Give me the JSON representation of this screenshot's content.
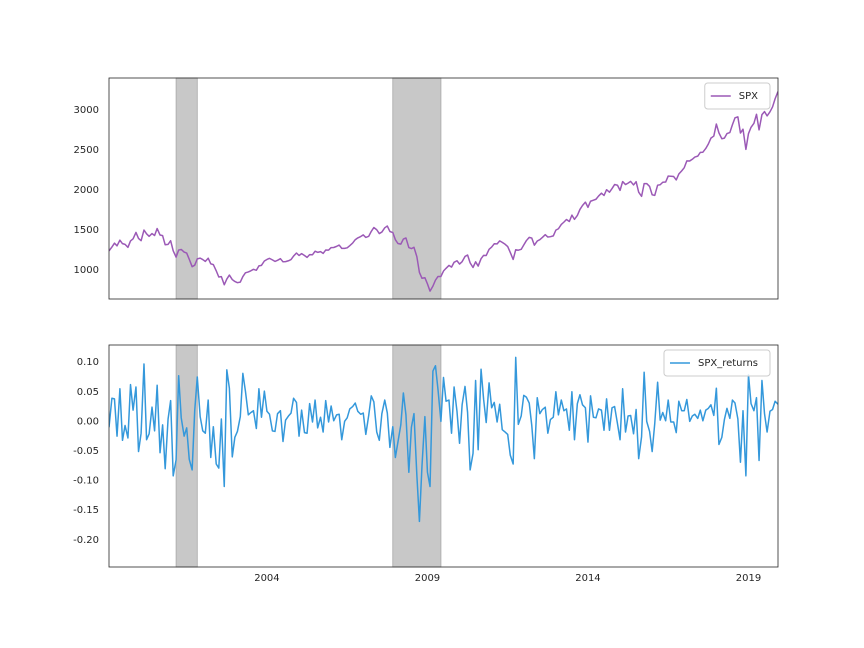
{
  "chart_data": [
    {
      "type": "line",
      "x": [
        1999.08,
        1999.17,
        1999.25,
        1999.33,
        1999.42,
        1999.5,
        1999.58,
        1999.67,
        1999.75,
        1999.83,
        1999.92,
        2000,
        2000.08,
        2000.17,
        2000.25,
        2000.33,
        2000.42,
        2000.5,
        2000.58,
        2000.67,
        2000.75,
        2000.83,
        2000.92,
        2001,
        2001.08,
        2001.17,
        2001.25,
        2001.33,
        2001.42,
        2001.5,
        2001.58,
        2001.67,
        2001.75,
        2001.83,
        2001.92,
        2002,
        2002.08,
        2002.17,
        2002.25,
        2002.33,
        2002.42,
        2002.5,
        2002.58,
        2002.67,
        2002.75,
        2002.83,
        2002.92,
        2003,
        2003.08,
        2003.17,
        2003.25,
        2003.33,
        2003.42,
        2003.5,
        2003.58,
        2003.67,
        2003.75,
        2003.83,
        2003.92,
        2004,
        2004.08,
        2004.17,
        2004.25,
        2004.33,
        2004.42,
        2004.5,
        2004.58,
        2004.67,
        2004.75,
        2004.83,
        2004.92,
        2005,
        2005.08,
        2005.17,
        2005.25,
        2005.33,
        2005.42,
        2005.5,
        2005.58,
        2005.67,
        2005.75,
        2005.83,
        2005.92,
        2006,
        2006.08,
        2006.17,
        2006.25,
        2006.33,
        2006.42,
        2006.5,
        2006.58,
        2006.67,
        2006.75,
        2006.83,
        2006.92,
        2007,
        2007.08,
        2007.17,
        2007.25,
        2007.33,
        2007.42,
        2007.5,
        2007.58,
        2007.67,
        2007.75,
        2007.83,
        2007.92,
        2008,
        2008.08,
        2008.17,
        2008.25,
        2008.33,
        2008.42,
        2008.5,
        2008.58,
        2008.67,
        2008.75,
        2008.83,
        2008.92,
        2009,
        2009.08,
        2009.17,
        2009.25,
        2009.33,
        2009.42,
        2009.5,
        2009.58,
        2009.67,
        2009.75,
        2009.83,
        2009.92,
        2010,
        2010.08,
        2010.17,
        2010.25,
        2010.33,
        2010.42,
        2010.5,
        2010.58,
        2010.67,
        2010.75,
        2010.83,
        2010.92,
        2011,
        2011.08,
        2011.17,
        2011.25,
        2011.33,
        2011.42,
        2011.5,
        2011.58,
        2011.67,
        2011.75,
        2011.83,
        2011.92,
        2012,
        2012.08,
        2012.17,
        2012.25,
        2012.33,
        2012.42,
        2012.5,
        2012.58,
        2012.67,
        2012.75,
        2012.83,
        2012.92,
        2013,
        2013.08,
        2013.17,
        2013.25,
        2013.33,
        2013.42,
        2013.5,
        2013.58,
        2013.67,
        2013.75,
        2013.83,
        2013.92,
        2014,
        2014.08,
        2014.17,
        2014.25,
        2014.33,
        2014.42,
        2014.5,
        2014.58,
        2014.67,
        2014.75,
        2014.83,
        2014.92,
        2015,
        2015.08,
        2015.17,
        2015.25,
        2015.33,
        2015.42,
        2015.5,
        2015.58,
        2015.67,
        2015.75,
        2015.83,
        2015.92,
        2016,
        2016.08,
        2016.17,
        2016.25,
        2016.33,
        2016.42,
        2016.5,
        2016.58,
        2016.67,
        2016.75,
        2016.83,
        2016.92,
        2017,
        2017.08,
        2017.17,
        2017.25,
        2017.33,
        2017.42,
        2017.5,
        2017.58,
        2017.67,
        2017.75,
        2017.83,
        2017.92,
        2018,
        2018.08,
        2018.17,
        2018.25,
        2018.33,
        2018.42,
        2018.5,
        2018.58,
        2018.67,
        2018.75,
        2018.83,
        2018.92,
        2019,
        2019.08,
        2019.17,
        2019.25,
        2019.33,
        2019.42,
        2019.5,
        2019.58,
        2019.67,
        2019.75,
        2019.83,
        2019.92
      ],
      "xlim": [
        1999.08,
        2019.92
      ],
      "series": [
        {
          "name": "SPX",
          "color": "#9b59b6",
          "values": [
            1238,
            1286,
            1335,
            1302,
            1373,
            1329,
            1320,
            1283,
            1363,
            1389,
            1469,
            1394,
            1366,
            1499,
            1452,
            1421,
            1455,
            1431,
            1518,
            1437,
            1429,
            1315,
            1320,
            1366,
            1240,
            1160,
            1249,
            1256,
            1224,
            1211,
            1134,
            1041,
            1060,
            1139,
            1148,
            1130,
            1107,
            1147,
            1077,
            1067,
            990,
            912,
            916,
            815,
            886,
            936,
            880,
            856,
            841,
            848,
            917,
            964,
            975,
            990,
            1008,
            996,
            1051,
            1058,
            1112,
            1131,
            1145,
            1126,
            1107,
            1121,
            1141,
            1102,
            1104,
            1115,
            1130,
            1174,
            1212,
            1181,
            1204,
            1181,
            1157,
            1192,
            1191,
            1234,
            1220,
            1229,
            1207,
            1249,
            1248,
            1280,
            1281,
            1295,
            1311,
            1270,
            1270,
            1277,
            1304,
            1336,
            1378,
            1401,
            1418,
            1438,
            1407,
            1421,
            1482,
            1531,
            1503,
            1455,
            1474,
            1527,
            1549,
            1481,
            1468,
            1379,
            1331,
            1323,
            1386,
            1400,
            1280,
            1267,
            1283,
            1166,
            969,
            896,
            903,
            826,
            735,
            798,
            873,
            919,
            919,
            987,
            1021,
            1057,
            1036,
            1096,
            1115,
            1074,
            1104,
            1169,
            1187,
            1089,
            1031,
            1102,
            1049,
            1141,
            1183,
            1181,
            1258,
            1286,
            1327,
            1326,
            1364,
            1345,
            1321,
            1292,
            1219,
            1131,
            1253,
            1247,
            1258,
            1312,
            1366,
            1408,
            1398,
            1310,
            1362,
            1379,
            1407,
            1441,
            1412,
            1416,
            1426,
            1498,
            1515,
            1569,
            1598,
            1631,
            1606,
            1686,
            1633,
            1682,
            1757,
            1806,
            1848,
            1783,
            1859,
            1872,
            1884,
            1924,
            1960,
            1931,
            2003,
            1972,
            2018,
            2068,
            2059,
            1995,
            2105,
            2068,
            2086,
            2107,
            2063,
            2104,
            1972,
            1920,
            2079,
            2080,
            2044,
            1940,
            1932,
            2060,
            2065,
            2097,
            2099,
            2174,
            2171,
            2168,
            2126,
            2199,
            2239,
            2279,
            2364,
            2363,
            2384,
            2412,
            2423,
            2470,
            2472,
            2519,
            2575,
            2648,
            2674,
            2824,
            2714,
            2641,
            2648,
            2705,
            2718,
            2816,
            2902,
            2914,
            2712,
            2760,
            2507,
            2704,
            2784,
            2834,
            2946,
            2752,
            2942,
            2980,
            2926,
            2977,
            3038,
            3141,
            3231
          ]
        }
      ],
      "ylim": [
        637,
        3400
      ],
      "yticks": [
        1000,
        1500,
        2000,
        2500,
        3000
      ],
      "shaded_spans": [
        [
          2001.17,
          2001.83
        ],
        [
          2007.92,
          2009.42
        ]
      ],
      "legend": "upper right"
    },
    {
      "type": "line",
      "series": [
        {
          "name": "SPX_returns",
          "color": "#3498db",
          "values": [
            -0.01,
            0.039,
            0.038,
            -0.025,
            0.055,
            -0.032,
            -0.007,
            -0.028,
            0.062,
            0.019,
            0.058,
            -0.051,
            -0.02,
            0.097,
            -0.031,
            -0.021,
            0.024,
            -0.016,
            0.061,
            -0.053,
            -0.006,
            -0.08,
            0.004,
            0.035,
            -0.092,
            -0.065,
            0.077,
            0.006,
            -0.025,
            -0.011,
            -0.064,
            -0.082,
            0.018,
            0.075,
            0.008,
            -0.016,
            -0.02,
            0.036,
            -0.061,
            -0.009,
            -0.072,
            -0.079,
            0.004,
            -0.11,
            0.087,
            0.056,
            -0.06,
            -0.027,
            -0.017,
            0.008,
            0.081,
            0.051,
            0.011,
            0.015,
            0.018,
            -0.012,
            0.055,
            0.007,
            0.051,
            0.017,
            0.012,
            -0.016,
            -0.017,
            0.013,
            0.018,
            -0.034,
            0.002,
            0.009,
            0.014,
            0.039,
            0.032,
            -0.025,
            0.019,
            -0.019,
            -0.02,
            0.03,
            -0.001,
            0.036,
            -0.011,
            0.007,
            -0.018,
            0.035,
            -0.001,
            0.026,
            0.001,
            0.011,
            0.012,
            -0.031,
            0,
            0.006,
            0.021,
            0.025,
            0.031,
            0.017,
            0.012,
            0.014,
            -0.022,
            0.01,
            0.043,
            0.033,
            -0.018,
            -0.032,
            0.013,
            0.036,
            0.014,
            -0.044,
            -0.009,
            -0.061,
            -0.035,
            -0.006,
            0.048,
            0.011,
            -0.086,
            -0.01,
            0.013,
            -0.091,
            -0.169,
            -0.075,
            0.008,
            -0.086,
            -0.11,
            0.085,
            0.094,
            0.053,
            0,
            0.074,
            0.034,
            0.036,
            -0.02,
            0.058,
            0.017,
            -0.037,
            0.028,
            0.059,
            0.015,
            -0.082,
            -0.054,
            0.069,
            -0.048,
            0.088,
            0.037,
            -0.002,
            0.065,
            0.023,
            0.032,
            -0.001,
            0.029,
            -0.014,
            -0.018,
            -0.022,
            -0.057,
            -0.072,
            0.108,
            -0.005,
            0.009,
            0.044,
            0.041,
            0.031,
            -0.007,
            -0.063,
            0.04,
            0.013,
            0.02,
            0.024,
            -0.02,
            0.003,
            0.007,
            0.05,
            0.011,
            0.036,
            0.018,
            0.021,
            -0.015,
            0.05,
            -0.031,
            0.03,
            0.045,
            0.028,
            0.023,
            -0.035,
            0.043,
            0.007,
            0.006,
            0.021,
            0.019,
            -0.015,
            0.038,
            -0.015,
            0.023,
            0.025,
            -0.004,
            -0.031,
            0.055,
            -0.018,
            0.009,
            0.01,
            -0.021,
            0.02,
            -0.063,
            -0.026,
            0.083,
            0,
            -0.017,
            -0.051,
            -0.004,
            0.066,
            0.002,
            0.015,
            0.001,
            0.036,
            -0.001,
            -0.001,
            -0.019,
            0.034,
            0.018,
            0.018,
            0.037,
            0,
            0.009,
            0.012,
            0.005,
            0.019,
            0.001,
            0.019,
            0.022,
            0.028,
            0.01,
            0.056,
            -0.039,
            -0.027,
            0.003,
            0.022,
            0.005,
            0.036,
            0.031,
            0.004,
            -0.069,
            0.018,
            -0.092,
            0.079,
            0.03,
            0.018,
            0.04,
            -0.066,
            0.069,
            0.013,
            -0.018,
            0.017,
            0.02,
            0.034,
            0.029
          ]
        }
      ],
      "ylim": [
        -0.246,
        0.129
      ],
      "yticks": [
        {
          "value": -0.2,
          "label": "-0.20"
        },
        {
          "value": -0.15,
          "label": "-0.15"
        },
        {
          "value": -0.1,
          "label": "-0.10"
        },
        {
          "value": -0.05,
          "label": "-0.05"
        },
        {
          "value": 0,
          "label": "0.00"
        },
        {
          "value": 0.05,
          "label": "0.05"
        },
        {
          "value": 0.1,
          "label": "0.10"
        }
      ],
      "xticks": [
        2004,
        2009,
        2014,
        2019
      ],
      "legend": "upper right"
    }
  ]
}
